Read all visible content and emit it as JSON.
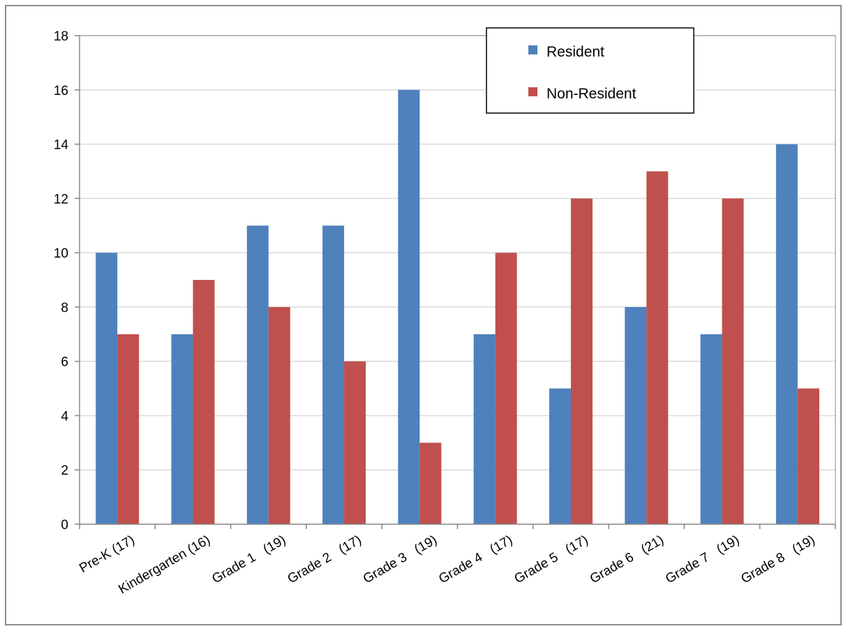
{
  "chart_data": {
    "type": "bar",
    "categories": [
      "Pre-K (17)",
      "Kindergarten (16)",
      "Grade 1   (19)",
      "Grade 2   (17)",
      "Grade 3   (19)",
      "Grade 4   (17)",
      "Grade 5   (17)",
      "Grade 6   (21)",
      "Grade 7   (19)",
      "Grade 8   (19)"
    ],
    "series": [
      {
        "name": "Resident",
        "values": [
          10,
          7,
          11,
          11,
          16,
          7,
          5,
          8,
          7,
          14
        ],
        "color": "#4f81bd"
      },
      {
        "name": "Non-Resident",
        "values": [
          7,
          9,
          8,
          6,
          3,
          10,
          12,
          13,
          12,
          5
        ],
        "color": "#c0504d"
      }
    ],
    "y_ticks": [
      "0",
      "2",
      "4",
      "6",
      "8",
      "10",
      "12",
      "14",
      "16",
      "18"
    ],
    "ylim": [
      0,
      18
    ],
    "grid": true,
    "legend_position": "top-right",
    "title": "",
    "xlabel": "",
    "ylabel": ""
  }
}
